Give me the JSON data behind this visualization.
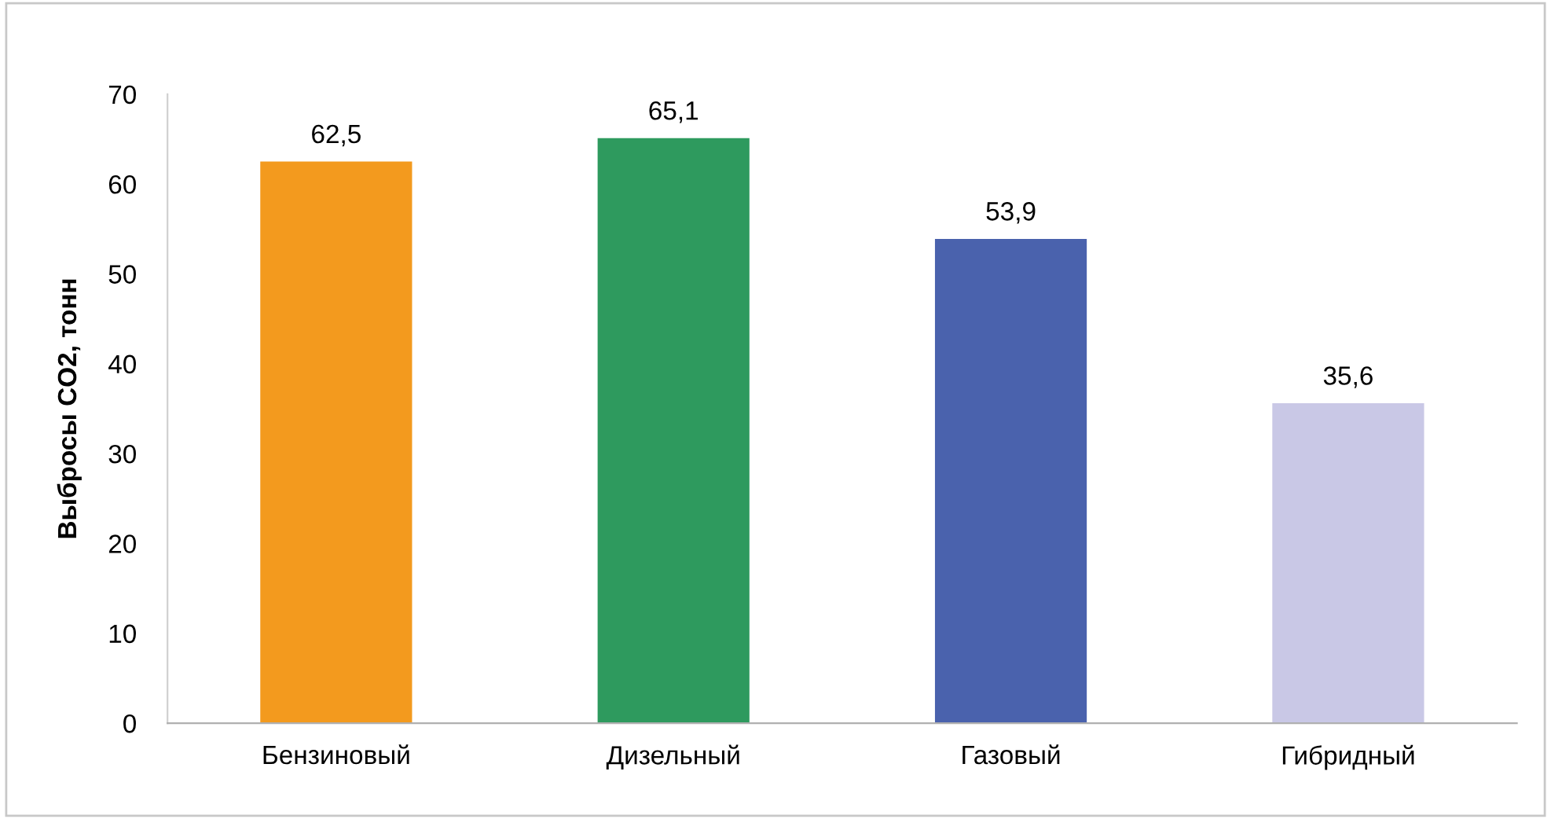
{
  "chart_data": {
    "type": "bar",
    "ylabel": "Выбросы CO2, тонн",
    "categories": [
      "Бензиновый",
      "Дизельный",
      "Газовый",
      "Гибридный"
    ],
    "values": [
      62.5,
      65.1,
      53.9,
      35.6
    ],
    "value_labels": [
      "62,5",
      "65,1",
      "53,9",
      "35,6"
    ],
    "colors": [
      "#f39a1e",
      "#2e9a5e",
      "#4a62ad",
      "#c9c8e6"
    ],
    "ylim": [
      0,
      70
    ],
    "yticks": [
      0,
      10,
      20,
      30,
      40,
      50,
      60,
      70
    ],
    "grid": false,
    "legend": false
  }
}
